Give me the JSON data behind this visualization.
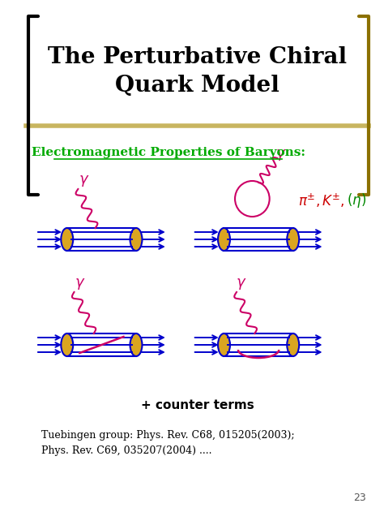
{
  "title": "The Perturbative Chiral\nQuark Model",
  "subtitle": "Electromagnetic Properties of Baryons:",
  "counter_terms": "+ counter terms",
  "reference": "Tuebingen group: Phys. Rev. C68, 015205(2003);\nPhys. Rev. C69, 035207(2004) ....",
  "page_number": "23",
  "bg_color": "#ffffff",
  "title_color": "#000000",
  "subtitle_color": "#00aa00",
  "bracket_color": "#000000",
  "gold_bar_color": "#DAA520",
  "line_color": "#0000cc",
  "photon_color": "#cc0066",
  "meson_label_color": "#cc0000",
  "eta_color": "#008800",
  "header_bar_color": "#c8b560",
  "right_bracket_color": "#8B7000"
}
